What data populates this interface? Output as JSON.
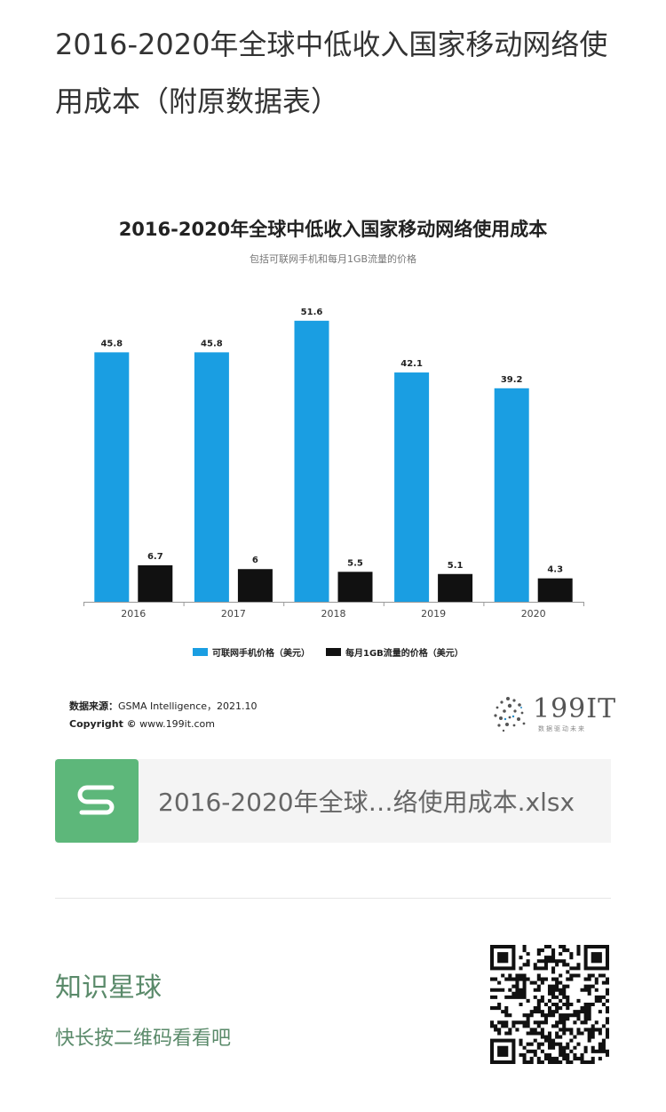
{
  "article": {
    "title": "2016-2020年全球中低收入国家移动网络使用成本（附原数据表）"
  },
  "chart_data": {
    "type": "bar",
    "title": "2016-2020年全球中低收入国家移动网络使用成本",
    "subtitle": "包括可联网手机和每月1GB流量的价格",
    "categories": [
      "2016",
      "2017",
      "2018",
      "2019",
      "2020"
    ],
    "series": [
      {
        "name": "可联网手机价格（美元）",
        "color": "#1a9ee2",
        "values": [
          45.8,
          45.8,
          51.6,
          42.1,
          39.2
        ]
      },
      {
        "name": "每月1GB流量的价格（美元）",
        "color": "#111111",
        "values": [
          6.7,
          6,
          5.5,
          5.1,
          4.3
        ]
      }
    ],
    "value_labels": {
      "s0": [
        "45.8",
        "45.8",
        "51.6",
        "42.1",
        "39.2"
      ],
      "s1": [
        "6.7",
        "6",
        "5.5",
        "5.1",
        "4.3"
      ]
    },
    "ylim": [
      0,
      55
    ],
    "grid": false,
    "legend_position": "bottom"
  },
  "source": {
    "label": "数据来源：",
    "text": "GSMA Intelligence，2021.10",
    "copyright_label": "Copyright ©",
    "copyright_text": "www.199it.com"
  },
  "logo": {
    "text": "199IT",
    "tagline": "数据驱动未来"
  },
  "file": {
    "name": "2016-2020年全球…络使用成本.xlsx",
    "icon": "spreadsheet-s-icon",
    "color": "#5db77a"
  },
  "footer": {
    "title": "知识星球",
    "subtitle": "快长按二维码看看吧",
    "qr_icon": "qr-code-icon"
  }
}
